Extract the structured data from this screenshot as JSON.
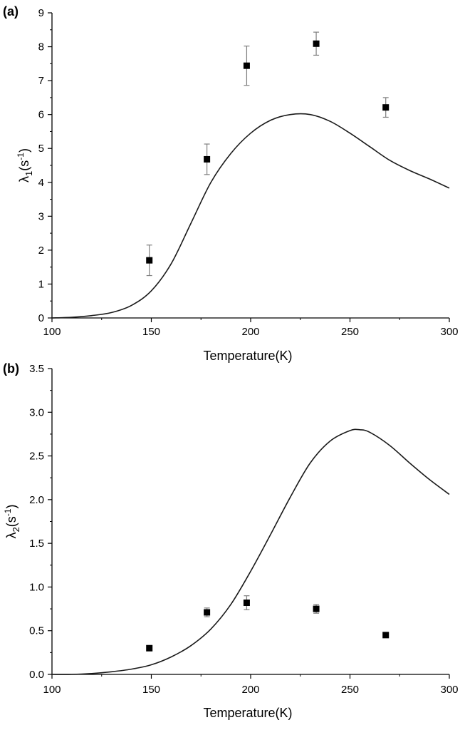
{
  "chart_data": [
    {
      "type": "scatter",
      "panel_label": "(a)",
      "xlabel": "Temperature(K)",
      "ylabel": {
        "symbol": "λ",
        "sub": "1",
        "unit_base": "(s",
        "unit_sup": "-1",
        "unit_close": ")"
      },
      "xlim": [
        100,
        300
      ],
      "ylim": [
        0,
        9
      ],
      "xticks": [
        100,
        150,
        200,
        250,
        300
      ],
      "yticks": [
        0,
        1,
        2,
        3,
        4,
        5,
        6,
        7,
        8,
        9
      ],
      "xtick_labels": [
        "100",
        "150",
        "200",
        "250",
        "300"
      ],
      "ytick_labels": [
        "0",
        "1",
        "2",
        "3",
        "4",
        "5",
        "6",
        "7",
        "8",
        "9"
      ],
      "grid": false,
      "series": [
        {
          "kind": "points",
          "marker": "square",
          "x": [
            149,
            178,
            198,
            233,
            268
          ],
          "y": [
            1.7,
            4.68,
            7.44,
            8.09,
            6.21
          ],
          "err": [
            0.45,
            0.45,
            0.58,
            0.34,
            0.29
          ]
        },
        {
          "kind": "line",
          "x": [
            100,
            110,
            120,
            130,
            140,
            150,
            160,
            170,
            180,
            190,
            200,
            210,
            220,
            230,
            240,
            250,
            260,
            270,
            280,
            290,
            300
          ],
          "y": [
            0.0,
            0.02,
            0.07,
            0.16,
            0.37,
            0.8,
            1.6,
            2.8,
            4.0,
            4.85,
            5.45,
            5.83,
            6.0,
            6.0,
            5.8,
            5.45,
            5.05,
            4.65,
            4.35,
            4.1,
            3.83
          ]
        }
      ]
    },
    {
      "type": "scatter",
      "panel_label": "(b)",
      "xlabel": "Temperature(K)",
      "ylabel": {
        "symbol": "λ",
        "sub": "2",
        "unit_base": "(s",
        "unit_sup": "-1",
        "unit_close": ")"
      },
      "xlim": [
        100,
        300
      ],
      "ylim": [
        0,
        3.5
      ],
      "xticks": [
        100,
        150,
        200,
        250,
        300
      ],
      "yticks": [
        0,
        0.5,
        1.0,
        1.5,
        2.0,
        2.5,
        3.0,
        3.5
      ],
      "xtick_labels": [
        "100",
        "150",
        "200",
        "250",
        "300"
      ],
      "ytick_labels": [
        "0.0",
        "0.5",
        "1.0",
        "1.5",
        "2.0",
        "2.5",
        "3.0",
        "3.5"
      ],
      "grid": false,
      "series": [
        {
          "kind": "points",
          "marker": "square",
          "x": [
            149,
            178,
            198,
            233,
            268
          ],
          "y": [
            0.3,
            0.71,
            0.82,
            0.75,
            0.45
          ],
          "err": [
            0.0,
            0.05,
            0.08,
            0.05,
            0.0
          ]
        },
        {
          "kind": "line",
          "x": [
            100,
            110,
            120,
            130,
            140,
            150,
            160,
            170,
            180,
            190,
            200,
            210,
            220,
            230,
            240,
            250,
            255,
            260,
            270,
            280,
            290,
            300
          ],
          "y": [
            0.0,
            0.0,
            0.01,
            0.03,
            0.06,
            0.11,
            0.2,
            0.33,
            0.52,
            0.8,
            1.18,
            1.6,
            2.03,
            2.42,
            2.67,
            2.79,
            2.8,
            2.77,
            2.62,
            2.42,
            2.23,
            2.06
          ]
        }
      ]
    }
  ],
  "colors": {
    "axis": "#000000",
    "curve": "#1a1a1a",
    "marker": "#000000",
    "errorbar": "#7f7f7f"
  }
}
